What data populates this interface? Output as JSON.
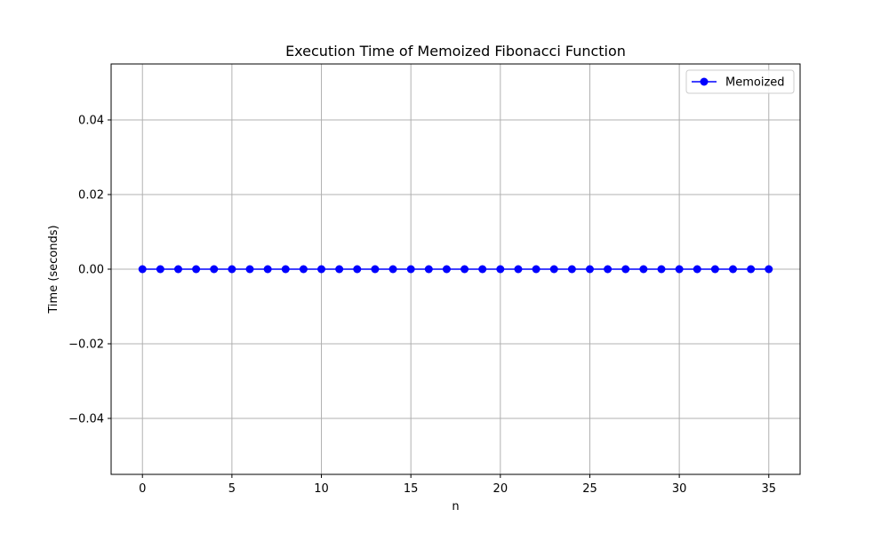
{
  "chart_data": {
    "type": "line",
    "title": "Execution Time of Memoized Fibonacci Function",
    "xlabel": "n",
    "ylabel": "Time (seconds)",
    "xlim": [
      -1.75,
      36.75
    ],
    "ylim": [
      -0.055,
      0.055
    ],
    "xticks": [
      0,
      5,
      10,
      15,
      20,
      25,
      30,
      35
    ],
    "xtick_labels": [
      "0",
      "5",
      "10",
      "15",
      "20",
      "25",
      "30",
      "35"
    ],
    "yticks": [
      -0.04,
      -0.02,
      0.0,
      0.02,
      0.04
    ],
    "ytick_labels": [
      "−0.04",
      "−0.02",
      "0.00",
      "0.02",
      "0.04"
    ],
    "grid": true,
    "legend_position": "top-right",
    "series": [
      {
        "name": "Memoized",
        "color": "#0000ff",
        "marker": "circle",
        "x": [
          0,
          1,
          2,
          3,
          4,
          5,
          6,
          7,
          8,
          9,
          10,
          11,
          12,
          13,
          14,
          15,
          16,
          17,
          18,
          19,
          20,
          21,
          22,
          23,
          24,
          25,
          26,
          27,
          28,
          29,
          30,
          31,
          32,
          33,
          34,
          35
        ],
        "values": [
          0,
          0,
          0,
          0,
          0,
          0,
          0,
          0,
          0,
          0,
          0,
          0,
          0,
          0,
          0,
          0,
          0,
          0,
          0,
          0,
          0,
          0,
          0,
          0,
          0,
          0,
          0,
          0,
          0,
          0,
          0,
          0,
          0,
          0,
          0,
          0
        ]
      }
    ]
  }
}
